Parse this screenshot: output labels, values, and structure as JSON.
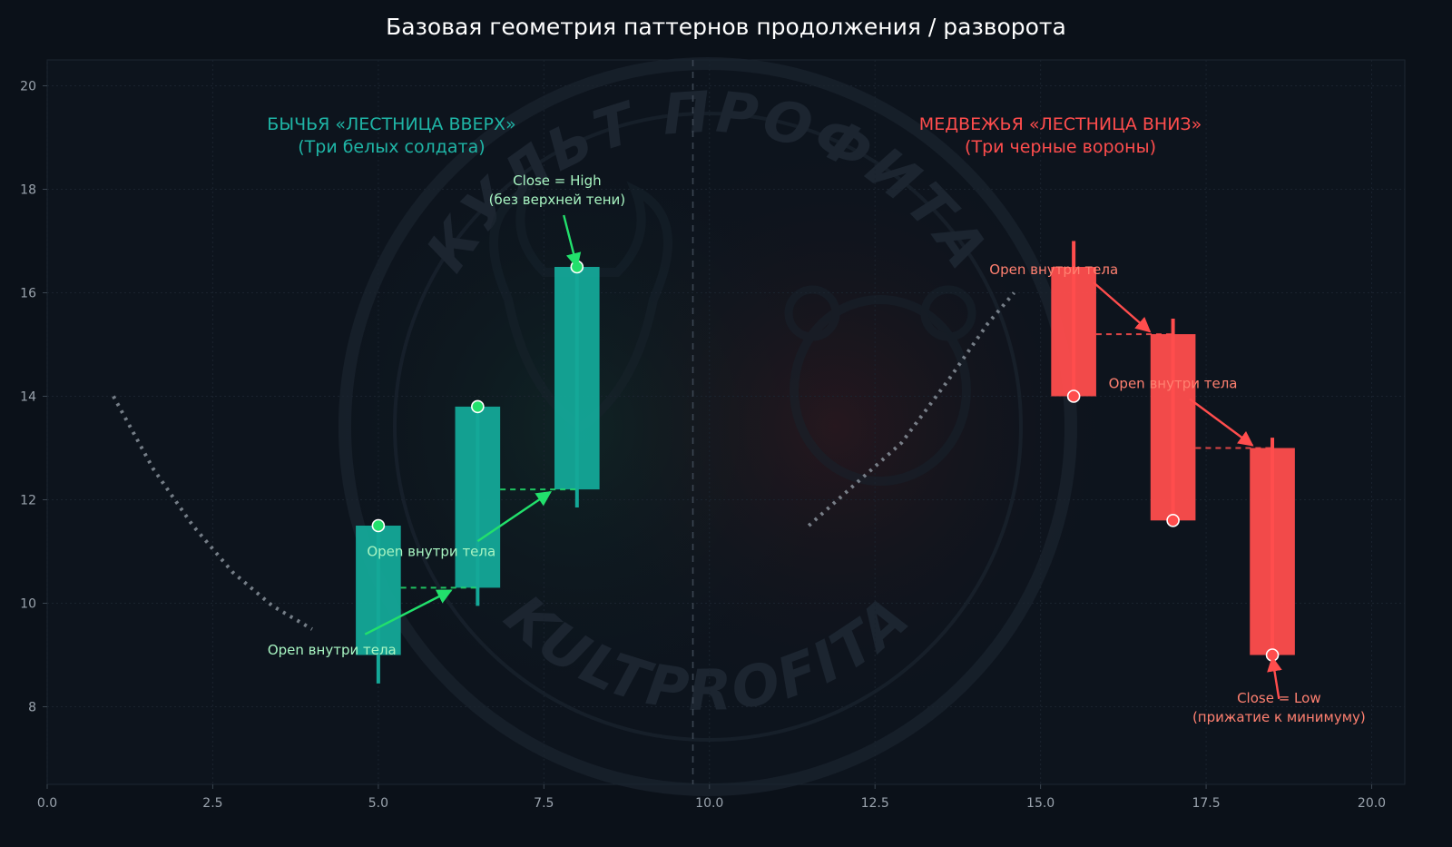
{
  "chart_data": {
    "type": "candlestick",
    "title": "Базовая геометрия паттернов продолжения / разворота",
    "xlim": [
      0,
      20.5
    ],
    "ylim": [
      6.5,
      20.5
    ],
    "x_ticks": [
      0.0,
      2.5,
      5.0,
      7.5,
      10.0,
      12.5,
      15.0,
      17.5,
      20.0
    ],
    "x_tick_labels": [
      "0.0",
      "2.5",
      "5.0",
      "7.5",
      "10.0",
      "12.5",
      "15.0",
      "17.5",
      "20.0"
    ],
    "y_ticks": [
      8,
      10,
      12,
      14,
      16,
      18,
      20
    ],
    "y_tick_labels": [
      "8",
      "10",
      "12",
      "14",
      "16",
      "18",
      "20"
    ],
    "grid": true,
    "divider_x": 9.75,
    "colors": {
      "background": "#0b1119",
      "plot_background": "#0d141d",
      "bull": "#14a898",
      "bull_accent": "#22e06c",
      "bull_title": "#1fb5a6",
      "bear": "#ff4d4d",
      "bear_title": "#ff4d4d",
      "bear_text": "#ff8070",
      "trend": "#9098a3",
      "axis_text": "#9aa3ad"
    },
    "watermark": {
      "top_text": "КУЛЬТ ПРОФИТА",
      "bottom_text": "KULTPROFITA"
    },
    "groups": [
      {
        "name": "bull",
        "title_line1": "БЫЧЬЯ «ЛЕСТНИЦА ВВЕРХ»",
        "title_line2": "(Три белых солдата)",
        "title_x": 5.2,
        "candles": [
          {
            "x": 5.0,
            "open": 9.0,
            "high": 11.5,
            "low": 8.45,
            "close": 11.5
          },
          {
            "x": 6.5,
            "open": 10.3,
            "high": 13.8,
            "low": 9.95,
            "close": 13.8
          },
          {
            "x": 8.0,
            "open": 12.2,
            "high": 16.5,
            "low": 11.85,
            "close": 16.5
          }
        ],
        "open_links": [
          {
            "from_x": 5.34,
            "to_x": 6.5,
            "y": 10.3
          },
          {
            "from_x": 6.84,
            "to_x": 8.0,
            "y": 12.2
          }
        ],
        "trend": {
          "x": [
            1.0,
            1.6,
            2.2,
            2.8,
            3.4,
            4.0
          ],
          "y": [
            14.0,
            12.6,
            11.5,
            10.6,
            9.95,
            9.5
          ]
        }
      },
      {
        "name": "bear",
        "title_line1": "МЕДВЕЖЬЯ «ЛЕСТНИЦА ВНИЗ»",
        "title_line2": "(Три черные вороны)",
        "title_x": 15.3,
        "candles": [
          {
            "x": 15.5,
            "open": 16.5,
            "high": 17.0,
            "low": 14.0,
            "close": 14.0
          },
          {
            "x": 17.0,
            "open": 15.2,
            "high": 15.5,
            "low": 11.6,
            "close": 11.6
          },
          {
            "x": 18.5,
            "open": 13.0,
            "high": 13.2,
            "low": 9.0,
            "close": 9.0
          }
        ],
        "open_links": [
          {
            "from_x": 15.84,
            "to_x": 17.0,
            "y": 15.2
          },
          {
            "from_x": 17.34,
            "to_x": 18.5,
            "y": 13.0
          }
        ],
        "trend": {
          "x": [
            11.5,
            12.2,
            12.9,
            13.6,
            14.2,
            14.6
          ],
          "y": [
            11.5,
            12.3,
            13.1,
            14.3,
            15.4,
            16.0
          ]
        }
      }
    ],
    "annotations": [
      {
        "text_lines": [
          "Close = High",
          "(без верхней тени)"
        ],
        "text_x": 7.7,
        "text_y": 17.9,
        "to_x": 8.0,
        "to_y": 16.5,
        "from_x": 7.8,
        "from_y": 17.5,
        "color": "#a8f5c2",
        "arrow_color": "#22e06c"
      },
      {
        "text_lines": [
          "Open внутри тела"
        ],
        "text_x": 4.3,
        "text_y": 9.1,
        "from_x": 4.8,
        "from_y": 9.4,
        "to_x": 6.1,
        "to_y": 10.25,
        "color": "#a8f5c2",
        "arrow_color": "#22e06c"
      },
      {
        "text_lines": [
          "Open внутри тела"
        ],
        "text_x": 5.8,
        "text_y": 11.0,
        "from_x": 6.5,
        "from_y": 11.2,
        "to_x": 7.6,
        "to_y": 12.15,
        "color": "#a8f5c2",
        "arrow_color": "#22e06c"
      },
      {
        "text_lines": [
          "Open внутри тела"
        ],
        "text_x": 15.2,
        "text_y": 16.45,
        "from_x": 15.8,
        "from_y": 16.2,
        "to_x": 16.65,
        "to_y": 15.25,
        "color": "#ff8070",
        "arrow_color": "#ff4d4d"
      },
      {
        "text_lines": [
          "Open внутри тела"
        ],
        "text_x": 17.0,
        "text_y": 14.25,
        "from_x": 17.25,
        "from_y": 13.95,
        "to_x": 18.2,
        "to_y": 13.05,
        "color": "#ff8070",
        "arrow_color": "#ff4d4d"
      },
      {
        "text_lines": [
          "Close = Low",
          "(прижатие к минимуму)"
        ],
        "text_x": 18.6,
        "text_y": 7.9,
        "from_x": 18.6,
        "from_y": 8.15,
        "to_x": 18.5,
        "to_y": 8.95,
        "color": "#ff8070",
        "arrow_color": "#ff4d4d"
      }
    ]
  }
}
